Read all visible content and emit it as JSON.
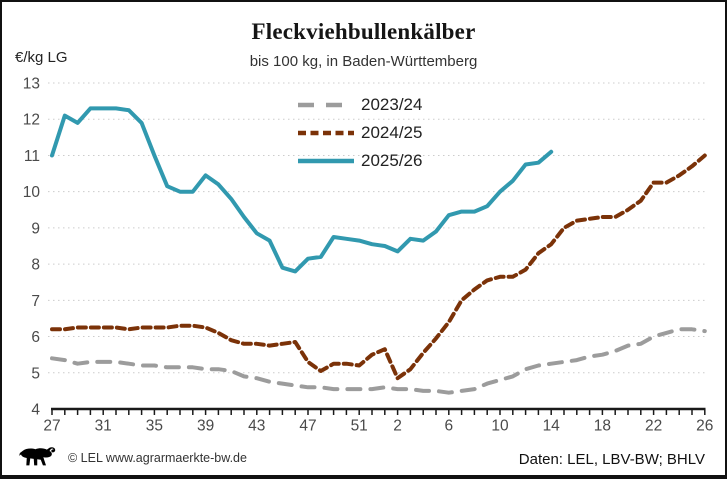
{
  "header": {
    "title": "Fleckviehbullenkälber",
    "subtitle": "bis 100 kg, in Baden-Württemberg",
    "y_unit_label": "€/kg LG"
  },
  "footer": {
    "logo_icon": "bw-lion-icon",
    "copyright": "© LEL www.agrarmaerkte-bw.de",
    "source": "Daten: LEL, LBV-BW; BHLV"
  },
  "colors": {
    "series_2023_24": "#9C9C9C",
    "series_2024_25": "#7B3208",
    "series_2025_26": "#3199AF",
    "grid": "#CCCCCC",
    "axis": "#1A1A1A",
    "tick_text": "#4A4A4A"
  },
  "chart_data": {
    "type": "line",
    "title": "Fleckviehbullenkälber",
    "subtitle": "bis 100 kg, in Baden-Württemberg",
    "ylabel": "€/kg LG",
    "xlabel": "",
    "ylim": [
      4,
      13
    ],
    "yticks": [
      4,
      5,
      6,
      7,
      8,
      9,
      10,
      11,
      12,
      13
    ],
    "grid": "dotted-horizontal",
    "legend_position": "top-center-inside",
    "x_weeks": [
      27,
      28,
      29,
      30,
      31,
      32,
      33,
      34,
      35,
      36,
      37,
      38,
      39,
      40,
      41,
      42,
      43,
      44,
      45,
      46,
      47,
      48,
      49,
      50,
      51,
      52,
      1,
      2,
      3,
      4,
      5,
      6,
      7,
      8,
      9,
      10,
      11,
      12,
      13,
      14,
      15,
      16,
      17,
      18,
      19,
      20,
      21,
      22,
      23,
      24,
      25,
      26
    ],
    "xtick_labels": [
      27,
      31,
      35,
      39,
      43,
      47,
      51,
      2,
      6,
      10,
      14,
      18,
      22,
      26
    ],
    "series": [
      {
        "name": "2023/24",
        "color": "#9C9C9C",
        "style": "dashed-long",
        "values": [
          5.4,
          5.35,
          5.25,
          5.3,
          5.3,
          5.3,
          5.25,
          5.2,
          5.2,
          5.15,
          5.15,
          5.15,
          5.1,
          5.1,
          5.05,
          4.9,
          4.85,
          4.75,
          4.7,
          4.65,
          4.6,
          4.6,
          4.55,
          4.55,
          4.55,
          4.55,
          4.6,
          4.55,
          4.55,
          4.5,
          4.5,
          4.45,
          4.5,
          4.55,
          4.7,
          4.8,
          4.9,
          5.1,
          5.2,
          5.25,
          5.3,
          5.35,
          5.45,
          5.5,
          5.6,
          5.75,
          5.8,
          6.0,
          6.1,
          6.2,
          6.2,
          6.15
        ]
      },
      {
        "name": "2024/25",
        "color": "#7B3208",
        "style": "dashed-short",
        "values": [
          6.2,
          6.2,
          6.25,
          6.25,
          6.25,
          6.25,
          6.2,
          6.25,
          6.25,
          6.25,
          6.3,
          6.3,
          6.25,
          6.1,
          5.9,
          5.8,
          5.8,
          5.75,
          5.8,
          5.85,
          5.3,
          5.05,
          5.25,
          5.25,
          5.2,
          5.5,
          5.65,
          4.85,
          5.1,
          5.55,
          5.95,
          6.4,
          7.0,
          7.3,
          7.55,
          7.65,
          7.65,
          7.85,
          8.3,
          8.55,
          9.0,
          9.2,
          9.25,
          9.3,
          9.3,
          9.5,
          9.75,
          10.25,
          10.25,
          10.45,
          10.7,
          11.0
        ]
      },
      {
        "name": "2025/26",
        "color": "#3199AF",
        "style": "solid",
        "values": [
          11.0,
          12.1,
          11.9,
          12.3,
          12.3,
          12.3,
          12.25,
          11.9,
          11.0,
          10.15,
          10.0,
          10.0,
          10.45,
          10.2,
          9.8,
          9.3,
          8.85,
          8.65,
          7.9,
          7.8,
          8.15,
          8.2,
          8.75,
          8.7,
          8.65,
          8.55,
          8.5,
          8.35,
          8.7,
          8.65,
          8.9,
          9.35,
          9.45,
          9.45,
          9.6,
          10.0,
          10.3,
          10.75,
          10.8,
          11.1,
          null,
          null,
          null,
          null,
          null,
          null,
          null,
          null,
          null,
          null,
          null,
          null
        ]
      }
    ]
  }
}
